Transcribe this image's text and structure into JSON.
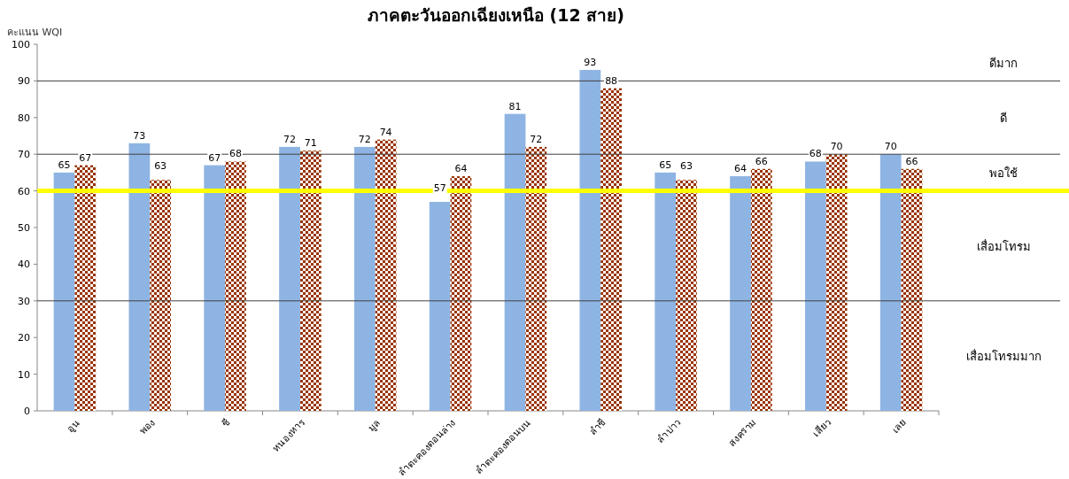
{
  "chart_data": {
    "type": "bar",
    "title": "ภาคตะวันออกเฉียงเหนือ (12 สาย)",
    "ylabel": "คะแนน WQI",
    "categories": [
      "อูน",
      "พอง",
      "ชี",
      "หนองหาร",
      "มูล",
      "ลำตะคองตอนล่าง",
      "ลำตะคองตอนบน",
      "ลำชี",
      "ลำปาว",
      "สงคราม",
      "เสียว",
      "เลย"
    ],
    "series": [
      {
        "color": "#8eb4e3",
        "values": [
          65,
          73,
          67,
          72,
          72,
          57,
          81,
          93,
          65,
          64,
          68,
          70
        ]
      },
      {
        "color": "#993300",
        "values": [
          67,
          63,
          68,
          71,
          74,
          64,
          72,
          88,
          63,
          66,
          70,
          66
        ]
      }
    ],
    "ylim": [
      0,
      100
    ],
    "yticks": [
      0,
      10,
      20,
      30,
      40,
      50,
      60,
      70,
      80,
      90,
      100
    ],
    "grid": false,
    "data_labels": true,
    "ref_lines": [
      {
        "axis": "y",
        "value": 30,
        "color": "#404040"
      },
      {
        "axis": "y",
        "value": 60,
        "color": "#ffff00"
      },
      {
        "axis": "y",
        "value": 70,
        "color": "#404040"
      },
      {
        "axis": "y",
        "value": 90,
        "color": "#404040"
      }
    ],
    "annotations": [
      "ดีมาก",
      "ดี",
      "พอใช้",
      "เสื่อมโทรม",
      "เสื่อมโทรมมาก"
    ]
  }
}
